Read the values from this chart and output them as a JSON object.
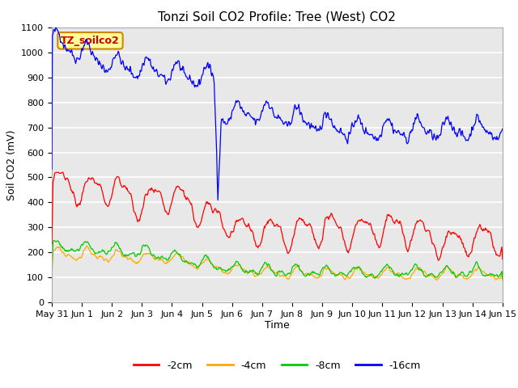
{
  "title": "Tonzi Soil CO2 Profile: Tree (West) CO2",
  "xlabel": "Time",
  "ylabel": "Soil CO2 (mV)",
  "ylim": [
    0,
    1100
  ],
  "x_tick_labels": [
    "May 31",
    "Jun 1",
    "Jun 2",
    "Jun 3",
    "Jun 4",
    "Jun 5",
    "Jun 6",
    "Jun 7",
    "Jun 8",
    "Jun 9",
    "Jun 10",
    "Jun 11",
    "Jun 12",
    "Jun 13",
    "Jun 14",
    "Jun 15"
  ],
  "legend_labels": [
    "-2cm",
    "-4cm",
    "-8cm",
    "-16cm"
  ],
  "line_colors": [
    "#ff0000",
    "#ffaa00",
    "#00cc00",
    "#0000ff"
  ],
  "legend_box_color": "#ffff99",
  "legend_box_edge": "#cc8800",
  "legend_text_color": "#cc0000",
  "legend_label": "TZ_soilco2",
  "plot_bg_color": "#e8e8e8",
  "grid_color": "#ffffff",
  "title_fontsize": 11,
  "axis_fontsize": 9,
  "tick_fontsize": 8
}
